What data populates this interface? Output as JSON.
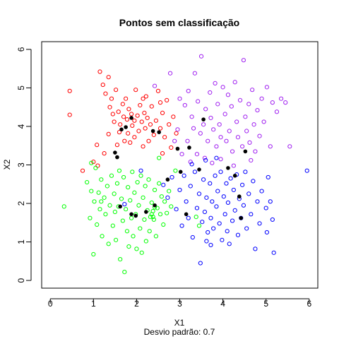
{
  "chart_data": {
    "type": "scatter",
    "title": "Pontos sem classificação",
    "xlabel": "X1",
    "ylabel": "X2",
    "subtitle": "Desvio padrão:  0.7",
    "xlim": [
      -0.2,
      6.2
    ],
    "ylim": [
      -0.2,
      6.2
    ],
    "x_ticks": [
      0,
      1,
      2,
      3,
      4,
      5,
      6
    ],
    "y_ticks": [
      0,
      1,
      2,
      3,
      4,
      5,
      6
    ],
    "grid": false,
    "legend": "none",
    "colors": {
      "cluster_red": "#ff0000",
      "cluster_purple": "#a020f0",
      "cluster_green": "#00ff00",
      "cluster_blue": "#0000ff",
      "centroid": "#000000"
    },
    "series": [
      {
        "color": "#ff0000",
        "marker": "open-circle",
        "points": [
          [
            0.45,
            4.92
          ],
          [
            0.45,
            4.3
          ],
          [
            1.08,
            3.52
          ],
          [
            1.15,
            5.42
          ],
          [
            1.22,
            5.08
          ],
          [
            1.28,
            4.85
          ],
          [
            1.35,
            5.28
          ],
          [
            1.38,
            4.5
          ],
          [
            1.42,
            4.72
          ],
          [
            1.45,
            4.32
          ],
          [
            1.48,
            4.12
          ],
          [
            1.52,
            4.95
          ],
          [
            1.55,
            3.52
          ],
          [
            1.58,
            4.38
          ],
          [
            1.6,
            3.85
          ],
          [
            1.62,
            4.05
          ],
          [
            1.68,
            4.58
          ],
          [
            1.7,
            4.25
          ],
          [
            1.72,
            3.62
          ],
          [
            1.75,
            4.72
          ],
          [
            1.78,
            4.18
          ],
          [
            1.8,
            3.82
          ],
          [
            1.82,
            4.45
          ],
          [
            1.85,
            3.58
          ],
          [
            1.88,
            4.32
          ],
          [
            1.9,
            4.02
          ],
          [
            1.95,
            3.72
          ],
          [
            1.98,
            4.95
          ],
          [
            2.02,
            4.28
          ],
          [
            2.05,
            3.88
          ],
          [
            2.08,
            4.55
          ],
          [
            2.12,
            4.12
          ],
          [
            2.15,
            3.48
          ],
          [
            2.18,
            4.35
          ],
          [
            2.2,
            3.95
          ],
          [
            2.22,
            4.78
          ],
          [
            2.25,
            4.22
          ],
          [
            2.28,
            3.62
          ],
          [
            2.32,
            4.05
          ],
          [
            2.35,
            4.52
          ],
          [
            2.4,
            3.78
          ],
          [
            2.45,
            4.15
          ],
          [
            2.5,
            4.92
          ],
          [
            2.55,
            3.95
          ],
          [
            2.6,
            4.35
          ],
          [
            2.65,
            3.72
          ],
          [
            2.7,
            4.68
          ],
          [
            2.75,
            4.05
          ],
          [
            2.8,
            3.45
          ],
          [
            2.85,
            4.25
          ],
          [
            2.92,
            3.82
          ],
          [
            1.0,
            3.08
          ],
          [
            1.1,
            2.98
          ],
          [
            2.55,
            4.62
          ],
          [
            0.75,
            2.85
          ],
          [
            1.35,
            3.8
          ],
          [
            1.25,
            3.3
          ],
          [
            2.15,
            4.72
          ],
          [
            1.95,
            4.15
          ],
          [
            2.6,
            3.3
          ]
        ]
      },
      {
        "color": "#a020f0",
        "marker": "open-circle",
        "points": [
          [
            2.42,
            5.05
          ],
          [
            2.78,
            5.38
          ],
          [
            3.0,
            4.72
          ],
          [
            3.12,
            4.55
          ],
          [
            3.2,
            4.92
          ],
          [
            3.28,
            4.25
          ],
          [
            3.35,
            5.38
          ],
          [
            3.42,
            4.65
          ],
          [
            3.48,
            3.82
          ],
          [
            3.5,
            5.82
          ],
          [
            3.55,
            4.05
          ],
          [
            3.6,
            4.45
          ],
          [
            3.65,
            3.62
          ],
          [
            3.7,
            4.88
          ],
          [
            3.72,
            4.22
          ],
          [
            3.78,
            3.92
          ],
          [
            3.82,
            5.12
          ],
          [
            3.85,
            3.48
          ],
          [
            3.88,
            4.58
          ],
          [
            3.92,
            4.05
          ],
          [
            3.95,
            3.72
          ],
          [
            4.0,
            5.02
          ],
          [
            4.05,
            4.32
          ],
          [
            4.08,
            3.62
          ],
          [
            4.12,
            4.82
          ],
          [
            4.15,
            3.88
          ],
          [
            4.2,
            4.52
          ],
          [
            4.22,
            3.35
          ],
          [
            4.28,
            5.15
          ],
          [
            4.32,
            4.12
          ],
          [
            4.35,
            3.72
          ],
          [
            4.4,
            4.68
          ],
          [
            4.45,
            3.48
          ],
          [
            4.48,
            5.72
          ],
          [
            4.52,
            4.25
          ],
          [
            4.55,
            3.88
          ],
          [
            4.6,
            4.58
          ],
          [
            4.62,
            3.58
          ],
          [
            4.68,
            4.95
          ],
          [
            4.72,
            4.05
          ],
          [
            4.75,
            3.35
          ],
          [
            4.8,
            4.42
          ],
          [
            4.85,
            3.75
          ],
          [
            4.9,
            4.72
          ],
          [
            4.95,
            4.12
          ],
          [
            5.02,
            5.02
          ],
          [
            5.1,
            3.48
          ],
          [
            5.15,
            4.62
          ],
          [
            5.25,
            4.38
          ],
          [
            5.35,
            4.72
          ],
          [
            5.45,
            4.62
          ],
          [
            5.55,
            3.48
          ],
          [
            3.18,
            3.62
          ],
          [
            3.25,
            3.08
          ],
          [
            3.32,
            3.95
          ],
          [
            3.4,
            3.28
          ],
          [
            3.58,
            3.18
          ],
          [
            3.75,
            3.05
          ],
          [
            3.95,
            3.15
          ],
          [
            4.25,
            2.98
          ],
          [
            4.65,
            3.12
          ],
          [
            2.95,
            3.92
          ],
          [
            3.05,
            3.28
          ],
          [
            2.88,
            3.62
          ]
        ]
      },
      {
        "color": "#00ff00",
        "marker": "open-circle",
        "points": [
          [
            0.32,
            1.92
          ],
          [
            0.85,
            2.55
          ],
          [
            0.92,
            1.62
          ],
          [
            0.95,
            2.32
          ],
          [
            1.0,
            0.68
          ],
          [
            1.02,
            2.05
          ],
          [
            1.05,
            2.92
          ],
          [
            1.08,
            1.45
          ],
          [
            1.12,
            2.28
          ],
          [
            1.15,
            1.85
          ],
          [
            1.18,
            2.62
          ],
          [
            1.2,
            1.15
          ],
          [
            1.25,
            2.15
          ],
          [
            1.28,
            1.72
          ],
          [
            1.32,
            2.45
          ],
          [
            1.35,
            0.95
          ],
          [
            1.38,
            1.95
          ],
          [
            1.42,
            2.72
          ],
          [
            1.45,
            1.42
          ],
          [
            1.48,
            2.25
          ],
          [
            1.5,
            1.78
          ],
          [
            1.52,
            1.05
          ],
          [
            1.55,
            2.52
          ],
          [
            1.58,
            1.92
          ],
          [
            1.6,
            2.85
          ],
          [
            1.62,
            0.55
          ],
          [
            1.65,
            2.12
          ],
          [
            1.68,
            1.55
          ],
          [
            1.7,
            2.68
          ],
          [
            1.72,
            0.22
          ],
          [
            1.75,
            1.85
          ],
          [
            1.78,
            1.28
          ],
          [
            1.8,
            2.42
          ],
          [
            1.82,
            0.88
          ],
          [
            1.85,
            2.08
          ],
          [
            1.88,
            1.62
          ],
          [
            1.9,
            2.82
          ],
          [
            1.92,
            1.15
          ],
          [
            1.95,
            2.28
          ],
          [
            1.98,
            1.72
          ],
          [
            2.0,
            0.82
          ],
          [
            2.02,
            2.55
          ],
          [
            2.05,
            1.95
          ],
          [
            2.08,
            1.35
          ],
          [
            2.1,
            2.72
          ],
          [
            2.12,
            0.72
          ],
          [
            2.15,
            2.15
          ],
          [
            2.18,
            1.58
          ],
          [
            2.2,
            2.45
          ],
          [
            2.22,
            1.02
          ],
          [
            2.25,
            1.82
          ],
          [
            2.28,
            2.62
          ],
          [
            2.3,
            1.28
          ],
          [
            2.35,
            2.02
          ],
          [
            2.38,
            1.65
          ],
          [
            2.42,
            2.35
          ],
          [
            2.45,
            1.15
          ],
          [
            2.48,
            1.88
          ],
          [
            2.52,
            2.52
          ],
          [
            2.55,
            1.72
          ],
          [
            2.58,
            2.18
          ],
          [
            2.62,
            1.45
          ],
          [
            2.65,
            2.05
          ],
          [
            2.7,
            1.75
          ],
          [
            2.75,
            2.32
          ],
          [
            2.8,
            1.92
          ],
          [
            2.9,
            2.85
          ],
          [
            2.32,
            1.65
          ],
          [
            2.35,
            1.72
          ],
          [
            2.38,
            1.8
          ],
          [
            2.4,
            1.58
          ],
          [
            2.42,
            1.9
          ],
          [
            3.38,
            1.65
          ],
          [
            3.45,
            1.42
          ],
          [
            0.95,
            3.05
          ],
          [
            1.18,
            2.05
          ],
          [
            2.52,
            3.18
          ]
        ]
      },
      {
        "color": "#0000ff",
        "marker": "open-circle",
        "points": [
          [
            1.72,
            1.98
          ],
          [
            2.1,
            2.85
          ],
          [
            2.62,
            2.48
          ],
          [
            2.72,
            2.15
          ],
          [
            2.82,
            2.68
          ],
          [
            2.92,
            1.85
          ],
          [
            3.0,
            2.35
          ],
          [
            3.05,
            1.42
          ],
          [
            3.1,
            2.72
          ],
          [
            3.15,
            2.05
          ],
          [
            3.2,
            1.62
          ],
          [
            3.25,
            2.45
          ],
          [
            3.3,
            1.12
          ],
          [
            3.35,
            2.82
          ],
          [
            3.4,
            1.88
          ],
          [
            3.45,
            2.25
          ],
          [
            3.48,
            0.45
          ],
          [
            3.52,
            1.52
          ],
          [
            3.55,
            2.62
          ],
          [
            3.58,
            1.78
          ],
          [
            3.62,
            2.15
          ],
          [
            3.65,
            1.25
          ],
          [
            3.7,
            2.52
          ],
          [
            3.72,
            1.62
          ],
          [
            3.75,
            2.05
          ],
          [
            3.78,
            1.35
          ],
          [
            3.82,
            2.72
          ],
          [
            3.85,
            1.92
          ],
          [
            3.88,
            2.32
          ],
          [
            3.92,
            1.48
          ],
          [
            3.95,
            2.82
          ],
          [
            3.98,
            1.05
          ],
          [
            4.02,
            2.18
          ],
          [
            4.05,
            1.72
          ],
          [
            4.08,
            2.52
          ],
          [
            4.1,
            1.28
          ],
          [
            4.12,
            2.02
          ],
          [
            4.15,
            0.95
          ],
          [
            4.18,
            2.65
          ],
          [
            4.22,
            1.55
          ],
          [
            4.25,
            2.35
          ],
          [
            4.28,
            1.82
          ],
          [
            4.32,
            2.75
          ],
          [
            4.35,
            1.18
          ],
          [
            4.38,
            2.12
          ],
          [
            4.42,
            1.62
          ],
          [
            4.45,
            2.48
          ],
          [
            4.48,
            1.95
          ],
          [
            4.52,
            2.82
          ],
          [
            4.55,
            1.35
          ],
          [
            4.6,
            2.25
          ],
          [
            4.65,
            1.72
          ],
          [
            4.7,
            2.58
          ],
          [
            4.75,
            0.82
          ],
          [
            4.8,
            2.05
          ],
          [
            4.85,
            1.48
          ],
          [
            4.9,
            2.32
          ],
          [
            5.0,
            1.88
          ],
          [
            5.02,
            1.25
          ],
          [
            5.05,
            2.68
          ],
          [
            5.1,
            2.05
          ],
          [
            5.15,
            1.58
          ],
          [
            5.18,
            0.72
          ],
          [
            5.95,
            2.85
          ],
          [
            3.72,
            0.92
          ],
          [
            3.6,
            3.12
          ],
          [
            3.28,
            3.02
          ],
          [
            3.85,
            3.18
          ],
          [
            3.62,
            1.02
          ]
        ]
      }
    ],
    "centroids": [
      [
        1.5,
        3.32
      ],
      [
        1.55,
        3.2
      ],
      [
        1.65,
        3.92
      ],
      [
        1.75,
        3.98
      ],
      [
        1.88,
        4.22
      ],
      [
        2.38,
        3.88
      ],
      [
        2.52,
        3.85
      ],
      [
        2.72,
        2.62
      ],
      [
        2.95,
        3.42
      ],
      [
        3.02,
        2.82
      ],
      [
        3.22,
        3.45
      ],
      [
        3.45,
        2.88
      ],
      [
        3.55,
        4.18
      ],
      [
        4.12,
        2.92
      ],
      [
        4.28,
        2.72
      ],
      [
        4.52,
        3.35
      ],
      [
        4.38,
        2.18
      ],
      [
        1.62,
        1.92
      ],
      [
        1.88,
        1.72
      ],
      [
        1.98,
        1.68
      ],
      [
        2.22,
        1.78
      ],
      [
        2.42,
        1.95
      ],
      [
        3.15,
        1.72
      ],
      [
        4.42,
        1.62
      ]
    ]
  }
}
